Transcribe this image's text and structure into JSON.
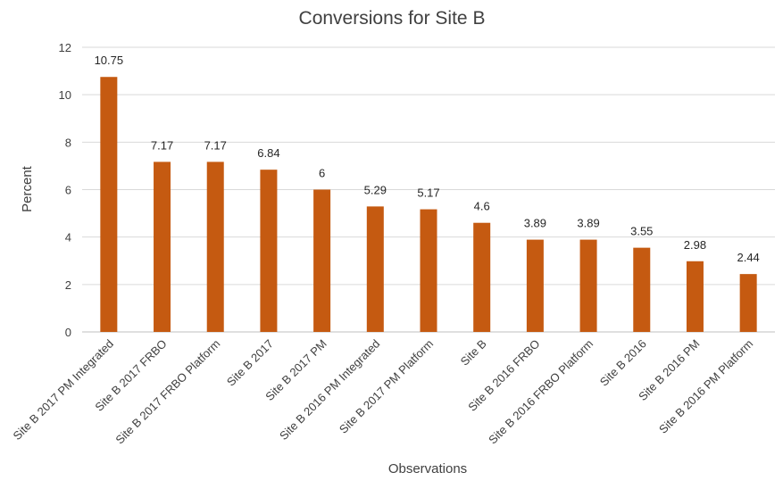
{
  "chart_data": {
    "type": "bar",
    "title": "Conversions for Site B",
    "xlabel": "Observations",
    "ylabel": "Percent",
    "ylim": [
      0,
      12
    ],
    "yticks": [
      0,
      2,
      4,
      6,
      8,
      10,
      12
    ],
    "grid": true,
    "legend": "none",
    "bar_color": "#c55a11",
    "categories": [
      "Site B 2017 PM Integrated",
      "Site B 2017 FRBO",
      "Site B 2017 FRBO Platform",
      "Site B 2017",
      "Site B 2017 PM",
      "Site B 2016 PM Integrated",
      "Site B 2017 PM Platform",
      "Site B",
      "Site B 2016 FRBO",
      "Site B 2016 FRBO Platform",
      "Site B 2016",
      "Site B 2016 PM",
      "Site B 2016 PM Platform"
    ],
    "values": [
      10.75,
      7.17,
      7.17,
      6.84,
      6,
      5.29,
      5.17,
      4.6,
      3.89,
      3.89,
      3.55,
      2.98,
      2.44
    ]
  }
}
